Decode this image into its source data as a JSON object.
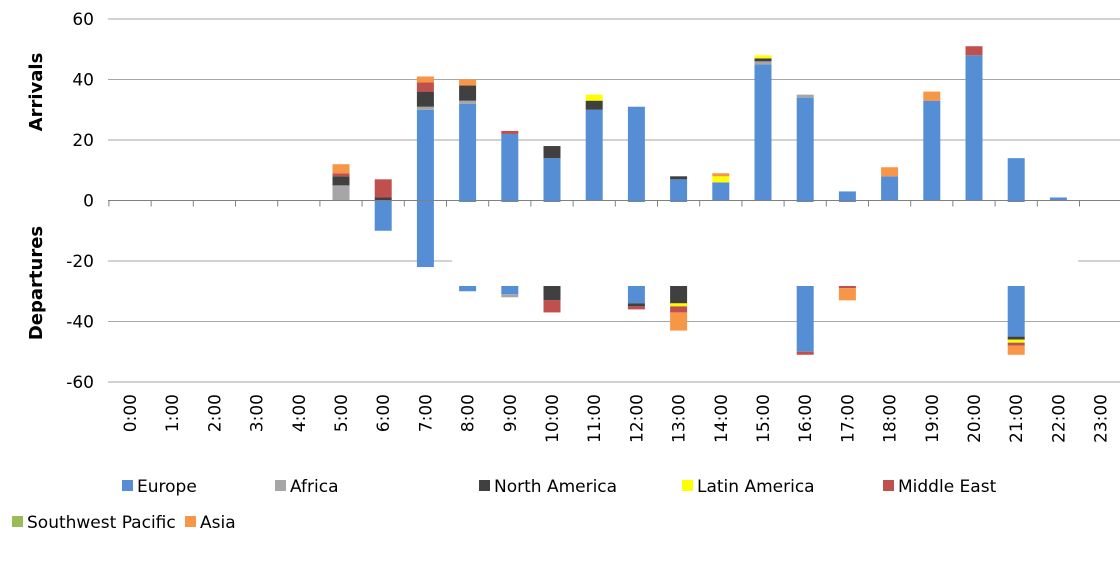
{
  "chart_data": {
    "type": "bar",
    "stacked": true,
    "title": "",
    "ylabel_top": "Arrivals",
    "ylabel_bottom": "Departures",
    "xlabel": "",
    "ylim": [
      -60,
      60
    ],
    "yticks": [
      60,
      40,
      20,
      0,
      -20,
      -40,
      -60
    ],
    "grid": true,
    "legend_position": "bottom",
    "categories": [
      "0:00",
      "1:00",
      "2:00",
      "3:00",
      "4:00",
      "5:00",
      "6:00",
      "7:00",
      "8:00",
      "9:00",
      "10:00",
      "11:00",
      "12:00",
      "13:00",
      "14:00",
      "15:00",
      "16:00",
      "17:00",
      "18:00",
      "19:00",
      "20:00",
      "21:00",
      "22:00",
      "23:00"
    ],
    "arrivals": [
      {
        "name": "Europe",
        "color": "#558ED5",
        "values": [
          0,
          0,
          0,
          0,
          0,
          0,
          0,
          30,
          32,
          22,
          14,
          30,
          31,
          7,
          6,
          45,
          34,
          3,
          8,
          33,
          48,
          14,
          1,
          0
        ]
      },
      {
        "name": "Africa",
        "color": "#A6A6A6",
        "values": [
          0,
          0,
          0,
          0,
          0,
          5,
          0,
          1,
          1,
          0,
          0,
          0,
          0,
          0,
          0,
          1,
          1,
          0,
          0,
          0,
          0,
          0,
          0,
          0
        ]
      },
      {
        "name": "North America",
        "color": "#404040",
        "values": [
          0,
          0,
          0,
          0,
          0,
          3,
          1,
          5,
          5,
          0,
          4,
          3,
          0,
          1,
          0,
          1,
          0,
          0,
          0,
          0,
          0,
          0,
          0,
          0
        ]
      },
      {
        "name": "Latin America",
        "color": "#FFFF00",
        "values": [
          0,
          0,
          0,
          0,
          0,
          0,
          0,
          0,
          0,
          0,
          0,
          2,
          0,
          0,
          2,
          1,
          0,
          0,
          0,
          0,
          0,
          0,
          0,
          0
        ]
      },
      {
        "name": "Middle East",
        "color": "#C0504D",
        "values": [
          0,
          0,
          0,
          0,
          0,
          1,
          6,
          3,
          0,
          1,
          0,
          0,
          0,
          0,
          0,
          0,
          0,
          0,
          0,
          0,
          3,
          0,
          0,
          0
        ]
      },
      {
        "name": "Southwest Pacific",
        "color": "#9BBB59",
        "values": [
          0,
          0,
          0,
          0,
          0,
          0,
          0,
          0,
          0,
          0,
          0,
          0,
          0,
          0,
          0,
          0,
          0,
          0,
          0,
          0,
          0,
          0,
          0,
          0
        ]
      },
      {
        "name": "Asia",
        "color": "#F79646",
        "values": [
          0,
          0,
          0,
          0,
          0,
          3,
          0,
          2,
          2,
          0,
          0,
          0,
          0,
          0,
          1,
          0,
          0,
          0,
          3,
          3,
          0,
          0,
          0,
          0
        ]
      }
    ],
    "departures": [
      {
        "name": "Europe",
        "color": "#558ED5",
        "values": [
          0,
          0,
          0,
          0,
          0,
          0,
          -10,
          -22,
          -30,
          -31,
          -28,
          0,
          -34,
          -28,
          0,
          0,
          -50,
          -28,
          0,
          0,
          0,
          -45,
          0,
          0
        ]
      },
      {
        "name": "Africa",
        "color": "#A6A6A6",
        "values": [
          0,
          0,
          0,
          0,
          0,
          0,
          0,
          0,
          0,
          -1,
          0,
          0,
          0,
          0,
          0,
          0,
          0,
          0,
          0,
          0,
          0,
          0,
          0,
          0
        ]
      },
      {
        "name": "North America",
        "color": "#404040",
        "values": [
          0,
          0,
          0,
          0,
          0,
          0,
          0,
          0,
          0,
          0,
          -5,
          0,
          -1,
          -6,
          0,
          0,
          0,
          0,
          0,
          0,
          0,
          -1,
          0,
          0
        ]
      },
      {
        "name": "Latin America",
        "color": "#FFFF00",
        "values": [
          0,
          0,
          0,
          0,
          0,
          0,
          0,
          0,
          0,
          0,
          0,
          0,
          0,
          -1,
          0,
          0,
          0,
          0,
          0,
          0,
          0,
          -1,
          0,
          0
        ]
      },
      {
        "name": "Middle East",
        "color": "#C0504D",
        "values": [
          0,
          0,
          0,
          0,
          0,
          0,
          0,
          0,
          0,
          0,
          -4,
          0,
          -1,
          -2,
          0,
          0,
          -1,
          -1,
          0,
          0,
          0,
          -1,
          0,
          0
        ]
      },
      {
        "name": "Southwest Pacific",
        "color": "#9BBB59",
        "values": [
          0,
          0,
          0,
          0,
          0,
          0,
          0,
          0,
          0,
          0,
          0,
          0,
          0,
          0,
          0,
          0,
          0,
          0,
          0,
          0,
          0,
          0,
          0,
          0
        ]
      },
      {
        "name": "Asia",
        "color": "#F79646",
        "values": [
          0,
          0,
          0,
          0,
          0,
          0,
          0,
          0,
          0,
          0,
          0,
          0,
          0,
          -6,
          0,
          0,
          0,
          -4,
          0,
          0,
          0,
          -3,
          0,
          0
        ]
      }
    ],
    "legend": [
      {
        "name": "Europe",
        "color": "#558ED5"
      },
      {
        "name": "Africa",
        "color": "#A6A6A6"
      },
      {
        "name": "North America",
        "color": "#404040"
      },
      {
        "name": "Latin America",
        "color": "#FFFF00"
      },
      {
        "name": "Middle East",
        "color": "#C0504D"
      },
      {
        "name": "Southwest Pacific",
        "color": "#9BBB59"
      },
      {
        "name": "Asia",
        "color": "#F79646"
      }
    ]
  }
}
